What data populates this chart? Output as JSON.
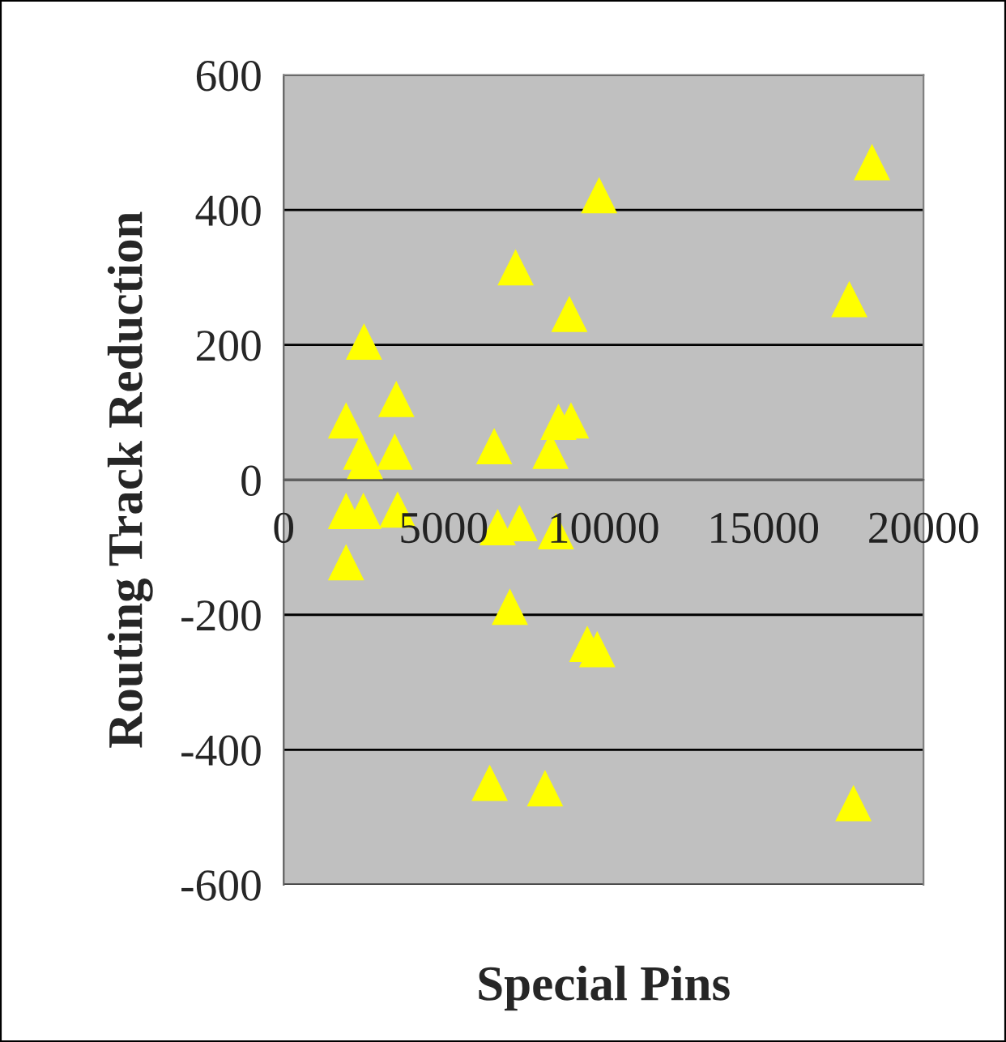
{
  "chart_data": {
    "type": "scatter",
    "xlabel": "Special Pins",
    "ylabel": "Routing Track Reduction",
    "x": [
      2510,
      3520,
      1950,
      2420,
      2540,
      3470,
      6580,
      7250,
      8930,
      8590,
      8980,
      8340,
      1950,
      2490,
      3560,
      1950,
      6690,
      7370,
      8510,
      7070,
      9490,
      9800,
      6440,
      8170,
      9860,
      18390,
      17680,
      17810
    ],
    "values": [
      205,
      120,
      88,
      42,
      28,
      42,
      50,
      315,
      246,
      86,
      88,
      43,
      -46,
      -46,
      -44,
      -122,
      -70,
      -64,
      -76,
      -188,
      -243,
      -251,
      -449,
      -457,
      422,
      471,
      268,
      -479
    ],
    "color": "#ffff00",
    "marker": "triangle",
    "xlim": [
      0,
      20000
    ],
    "xticks": [
      0,
      5000,
      10000,
      15000,
      20000
    ],
    "ylim": [
      -600,
      600
    ],
    "yticks": [
      -600,
      -400,
      -200,
      0,
      200,
      400,
      600
    ],
    "grid": "y",
    "legend": false
  }
}
